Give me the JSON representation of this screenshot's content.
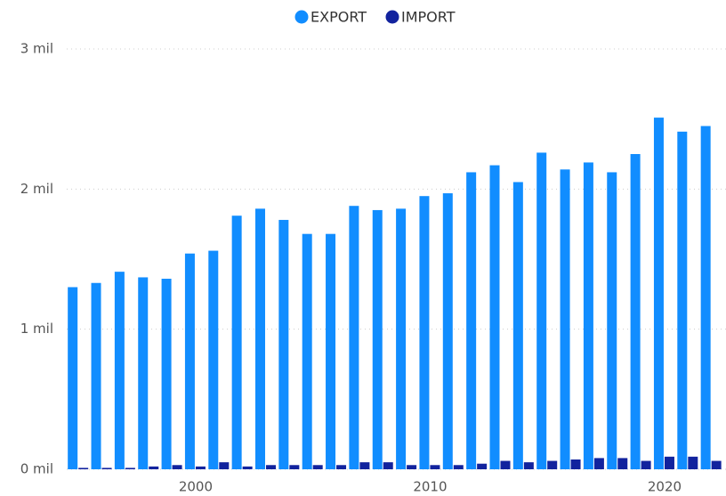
{
  "chart_data": {
    "type": "bar",
    "x": [
      1995,
      1996,
      1997,
      1998,
      1999,
      2000,
      2001,
      2002,
      2003,
      2004,
      2005,
      2006,
      2007,
      2008,
      2009,
      2010,
      2011,
      2012,
      2013,
      2014,
      2015,
      2016,
      2017,
      2018,
      2019,
      2020,
      2021,
      2022
    ],
    "series": [
      {
        "name": "EXPORT",
        "color": "#118dff",
        "values": [
          1.3,
          1.33,
          1.41,
          1.37,
          1.36,
          1.54,
          1.56,
          1.81,
          1.86,
          1.78,
          1.68,
          1.68,
          1.88,
          1.85,
          1.86,
          1.95,
          1.97,
          2.12,
          2.17,
          2.05,
          2.26,
          2.14,
          2.19,
          2.12,
          2.25,
          2.51,
          2.41,
          2.45
        ]
      },
      {
        "name": "IMPORT",
        "color": "#12239e",
        "values": [
          0.01,
          0.01,
          0.01,
          0.02,
          0.03,
          0.02,
          0.05,
          0.02,
          0.03,
          0.03,
          0.03,
          0.03,
          0.05,
          0.05,
          0.03,
          0.03,
          0.03,
          0.04,
          0.06,
          0.05,
          0.06,
          0.07,
          0.08,
          0.08,
          0.06,
          0.09,
          0.09,
          0.06
        ]
      }
    ],
    "xlim": [
      1994.5,
      2022.62
    ],
    "xticks": [
      2000,
      2010,
      2020
    ],
    "ylim": [
      0,
      3
    ],
    "yticks": [
      {
        "value": 0,
        "label": "0 mil"
      },
      {
        "value": 1,
        "label": "1 mil"
      },
      {
        "value": 2,
        "label": "2 mil"
      },
      {
        "value": 3,
        "label": "3 mil"
      }
    ],
    "grid": true,
    "legend": "top"
  }
}
